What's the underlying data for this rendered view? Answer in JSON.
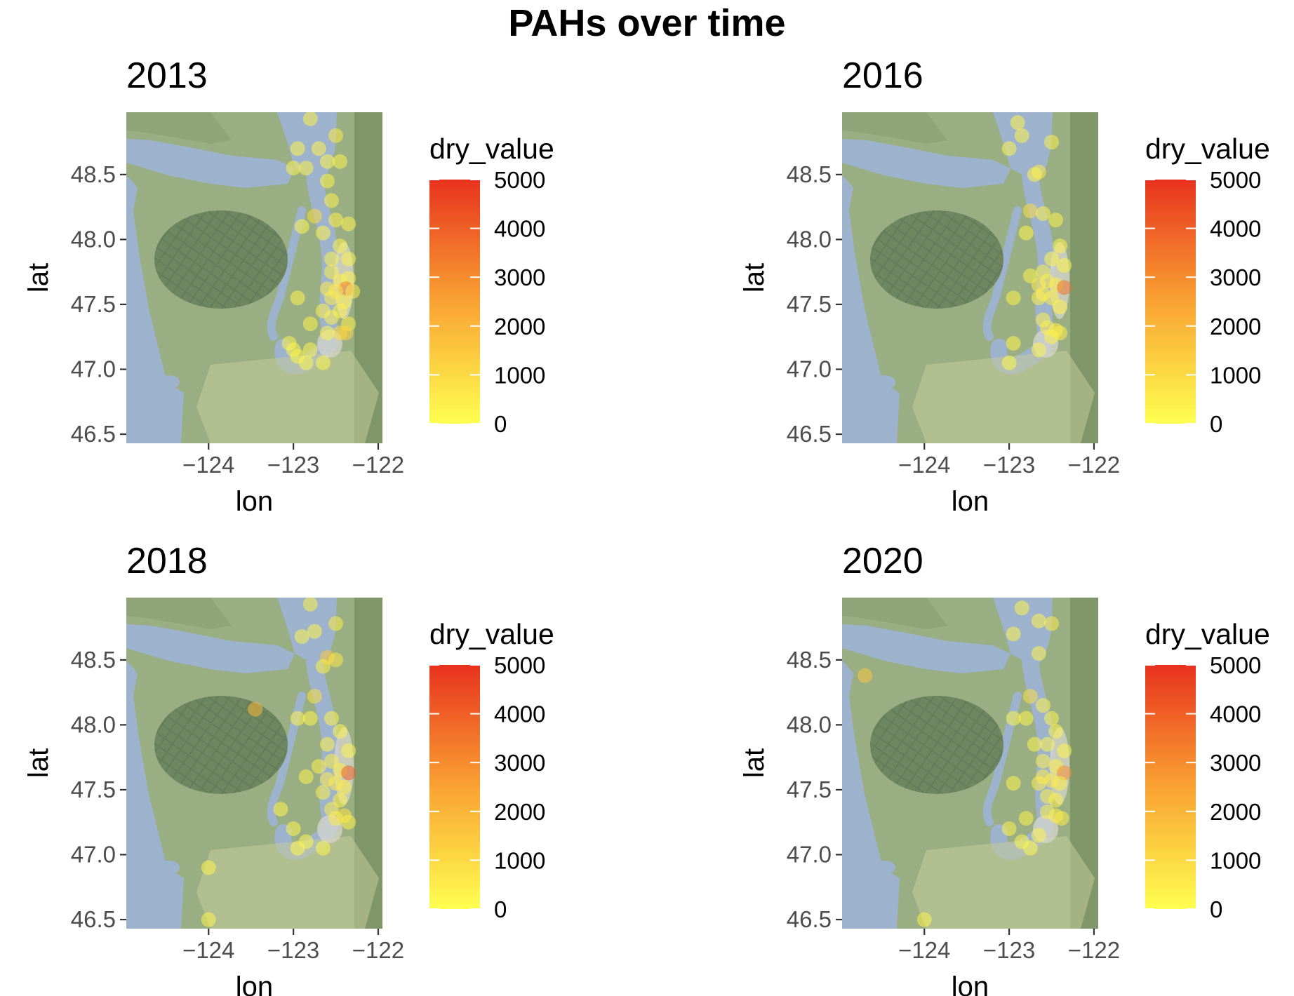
{
  "figure": {
    "title": "PAHs over time"
  },
  "colors": {
    "water": "#9db2cc",
    "land": "#9aae84",
    "mountain": "#6f8761",
    "lowland": "#c5cc9a",
    "urban": "#d6d6cc",
    "scale_low": "#ffff50",
    "scale_mid": "#f9a232",
    "scale_high": "#e8321e"
  },
  "chart_data": [
    {
      "type": "scatter",
      "title": "2013",
      "xlabel": "lon",
      "ylabel": "lat",
      "xlim": [
        -124.97,
        -121.95
      ],
      "ylim": [
        46.43,
        48.98
      ],
      "xticks": [
        -124,
        -123,
        -122
      ],
      "xtick_labels": [
        "−124",
        "−123",
        "−122"
      ],
      "yticks": [
        46.5,
        47.0,
        47.5,
        48.0,
        48.5
      ],
      "ytick_labels": [
        "46.5",
        "47.0",
        "47.5",
        "48.0",
        "48.5"
      ],
      "legend": {
        "title": "dry_value",
        "range": [
          0,
          5000
        ],
        "breaks": [
          0,
          1000,
          2000,
          3000,
          4000,
          5000
        ],
        "position": "right"
      },
      "points": [
        [
          -122.8,
          48.93,
          400
        ],
        [
          -122.5,
          48.8,
          600
        ],
        [
          -122.7,
          48.7,
          300
        ],
        [
          -122.95,
          48.7,
          250
        ],
        [
          -123.0,
          48.55,
          350
        ],
        [
          -122.85,
          48.55,
          400
        ],
        [
          -122.6,
          48.6,
          300
        ],
        [
          -122.45,
          48.6,
          300
        ],
        [
          -122.6,
          48.45,
          300
        ],
        [
          -122.55,
          48.3,
          350
        ],
        [
          -122.75,
          48.18,
          1000
        ],
        [
          -122.5,
          48.15,
          400
        ],
        [
          -122.35,
          48.12,
          350
        ],
        [
          -122.65,
          48.05,
          300
        ],
        [
          -122.9,
          48.1,
          250
        ],
        [
          -122.45,
          47.95,
          350
        ],
        [
          -122.55,
          47.85,
          300
        ],
        [
          -122.35,
          47.85,
          350
        ],
        [
          -122.55,
          47.75,
          400
        ],
        [
          -122.45,
          47.68,
          500
        ],
        [
          -122.35,
          47.7,
          400
        ],
        [
          -122.6,
          47.62,
          500
        ],
        [
          -122.38,
          47.62,
          3400
        ],
        [
          -122.5,
          47.6,
          600
        ],
        [
          -122.3,
          47.6,
          450
        ],
        [
          -122.55,
          47.55,
          500
        ],
        [
          -122.4,
          47.52,
          450
        ],
        [
          -122.95,
          47.55,
          250
        ],
        [
          -122.65,
          47.45,
          350
        ],
        [
          -122.45,
          47.45,
          400
        ],
        [
          -122.8,
          47.35,
          300
        ],
        [
          -122.55,
          47.4,
          350
        ],
        [
          -122.35,
          47.35,
          400
        ],
        [
          -122.45,
          47.28,
          1000
        ],
        [
          -122.38,
          47.28,
          1200
        ],
        [
          -122.6,
          47.28,
          300
        ],
        [
          -123.05,
          47.2,
          300
        ],
        [
          -122.8,
          47.15,
          250
        ],
        [
          -122.95,
          47.1,
          300
        ],
        [
          -122.65,
          47.05,
          300
        ],
        [
          -122.85,
          47.05,
          250
        ],
        [
          -123.0,
          47.15,
          250
        ]
      ]
    },
    {
      "type": "scatter",
      "title": "2016",
      "xlabel": "lon",
      "ylabel": "lat",
      "xlim": [
        -124.97,
        -121.95
      ],
      "ylim": [
        46.43,
        48.98
      ],
      "xticks": [
        -124,
        -123,
        -122
      ],
      "xtick_labels": [
        "−124",
        "−123",
        "−122"
      ],
      "yticks": [
        46.5,
        47.0,
        47.5,
        48.0,
        48.5
      ],
      "ytick_labels": [
        "46.5",
        "47.0",
        "47.5",
        "48.0",
        "48.5"
      ],
      "legend": {
        "title": "dry_value",
        "range": [
          0,
          5000
        ],
        "breaks": [
          0,
          1000,
          2000,
          3000,
          4000,
          5000
        ],
        "position": "right"
      },
      "points": [
        [
          -122.9,
          48.9,
          300
        ],
        [
          -122.85,
          48.8,
          300
        ],
        [
          -122.5,
          48.75,
          400
        ],
        [
          -123.0,
          48.7,
          300
        ],
        [
          -122.65,
          48.52,
          600
        ],
        [
          -122.7,
          48.5,
          300
        ],
        [
          -122.75,
          48.22,
          900
        ],
        [
          -122.6,
          48.2,
          300
        ],
        [
          -122.45,
          48.15,
          300
        ],
        [
          -122.8,
          48.05,
          250
        ],
        [
          -122.4,
          47.95,
          300
        ],
        [
          -122.5,
          47.85,
          300
        ],
        [
          -122.35,
          47.8,
          300
        ],
        [
          -122.6,
          47.75,
          400
        ],
        [
          -122.75,
          47.72,
          300
        ],
        [
          -122.55,
          47.68,
          500
        ],
        [
          -122.65,
          47.65,
          500
        ],
        [
          -122.45,
          47.65,
          500
        ],
        [
          -122.35,
          47.63,
          3600
        ],
        [
          -122.6,
          47.58,
          500
        ],
        [
          -122.5,
          47.55,
          500
        ],
        [
          -122.65,
          47.55,
          400
        ],
        [
          -122.95,
          47.55,
          300
        ],
        [
          -122.4,
          47.48,
          400
        ],
        [
          -122.6,
          47.38,
          350
        ],
        [
          -122.55,
          47.32,
          400
        ],
        [
          -122.45,
          47.3,
          500
        ],
        [
          -122.4,
          47.28,
          500
        ],
        [
          -122.5,
          47.25,
          400
        ],
        [
          -122.95,
          47.2,
          250
        ],
        [
          -122.65,
          47.15,
          300
        ],
        [
          -123.0,
          47.05,
          250
        ]
      ]
    },
    {
      "type": "scatter",
      "title": "2018",
      "xlabel": "lon",
      "ylabel": "lat",
      "xlim": [
        -124.97,
        -121.95
      ],
      "ylim": [
        46.43,
        48.98
      ],
      "xticks": [
        -124,
        -123,
        -122
      ],
      "xtick_labels": [
        "−124",
        "−123",
        "−122"
      ],
      "yticks": [
        46.5,
        47.0,
        47.5,
        48.0,
        48.5
      ],
      "ytick_labels": [
        "46.5",
        "47.0",
        "47.5",
        "48.0",
        "48.5"
      ],
      "legend": {
        "title": "dry_value",
        "range": [
          0,
          5000
        ],
        "breaks": [
          0,
          1000,
          2000,
          3000,
          4000,
          5000
        ],
        "position": "right"
      },
      "points": [
        [
          -122.8,
          48.93,
          400
        ],
        [
          -122.5,
          48.78,
          500
        ],
        [
          -122.75,
          48.72,
          300
        ],
        [
          -122.9,
          48.68,
          300
        ],
        [
          -122.6,
          48.52,
          1500
        ],
        [
          -122.5,
          48.5,
          600
        ],
        [
          -122.65,
          48.45,
          400
        ],
        [
          -122.75,
          48.22,
          800
        ],
        [
          -123.45,
          48.12,
          2000
        ],
        [
          -122.95,
          48.05,
          300
        ],
        [
          -122.8,
          48.05,
          250
        ],
        [
          -122.55,
          48.05,
          300
        ],
        [
          -122.45,
          47.95,
          300
        ],
        [
          -122.6,
          47.85,
          300
        ],
        [
          -122.35,
          47.8,
          350
        ],
        [
          -122.55,
          47.72,
          500
        ],
        [
          -122.7,
          47.68,
          400
        ],
        [
          -122.45,
          47.65,
          500
        ],
        [
          -122.35,
          47.63,
          4000
        ],
        [
          -122.6,
          47.58,
          500
        ],
        [
          -122.5,
          47.55,
          600
        ],
        [
          -122.4,
          47.52,
          600
        ],
        [
          -122.85,
          47.6,
          300
        ],
        [
          -122.65,
          47.48,
          400
        ],
        [
          -122.45,
          47.42,
          400
        ],
        [
          -122.55,
          47.35,
          500
        ],
        [
          -122.4,
          47.3,
          800
        ],
        [
          -122.5,
          47.28,
          500
        ],
        [
          -122.35,
          47.25,
          400
        ],
        [
          -123.15,
          47.35,
          250
        ],
        [
          -123.0,
          47.2,
          250
        ],
        [
          -122.85,
          47.1,
          250
        ],
        [
          -122.65,
          47.05,
          250
        ],
        [
          -122.95,
          47.05,
          250
        ],
        [
          -124.0,
          46.9,
          300
        ],
        [
          -124.0,
          46.5,
          300
        ]
      ]
    },
    {
      "type": "scatter",
      "title": "2020",
      "xlabel": "lon",
      "ylabel": "lat",
      "xlim": [
        -124.97,
        -121.95
      ],
      "ylim": [
        46.43,
        48.98
      ],
      "xticks": [
        -124,
        -123,
        -122
      ],
      "xtick_labels": [
        "−124",
        "−123",
        "−122"
      ],
      "yticks": [
        46.5,
        47.0,
        47.5,
        48.0,
        48.5
      ],
      "ytick_labels": [
        "46.5",
        "47.0",
        "47.5",
        "48.0",
        "48.5"
      ],
      "legend": {
        "title": "dry_value",
        "range": [
          0,
          5000
        ],
        "breaks": [
          0,
          1000,
          2000,
          3000,
          4000,
          5000
        ],
        "position": "right"
      },
      "points": [
        [
          -122.85,
          48.9,
          300
        ],
        [
          -122.5,
          48.78,
          500
        ],
        [
          -122.65,
          48.8,
          300
        ],
        [
          -122.95,
          48.7,
          300
        ],
        [
          -124.7,
          48.38,
          1500
        ],
        [
          -122.65,
          48.55,
          300
        ],
        [
          -122.75,
          48.22,
          900
        ],
        [
          -122.6,
          48.15,
          300
        ],
        [
          -122.95,
          48.05,
          250
        ],
        [
          -122.8,
          48.05,
          250
        ],
        [
          -122.5,
          48.05,
          300
        ],
        [
          -122.45,
          47.95,
          300
        ],
        [
          -122.55,
          47.85,
          300
        ],
        [
          -122.7,
          47.85,
          300
        ],
        [
          -122.35,
          47.8,
          300
        ],
        [
          -122.6,
          47.72,
          400
        ],
        [
          -122.45,
          47.68,
          500
        ],
        [
          -122.35,
          47.63,
          3000
        ],
        [
          -122.6,
          47.6,
          600
        ],
        [
          -122.5,
          47.57,
          600
        ],
        [
          -122.4,
          47.55,
          500
        ],
        [
          -122.65,
          47.55,
          500
        ],
        [
          -122.95,
          47.55,
          300
        ],
        [
          -122.55,
          47.45,
          400
        ],
        [
          -122.45,
          47.42,
          400
        ],
        [
          -122.55,
          47.33,
          400
        ],
        [
          -122.45,
          47.3,
          500
        ],
        [
          -122.38,
          47.28,
          500
        ],
        [
          -122.8,
          47.28,
          300
        ],
        [
          -123.0,
          47.2,
          300
        ],
        [
          -122.65,
          47.15,
          300
        ],
        [
          -122.85,
          47.1,
          250
        ],
        [
          -122.75,
          47.05,
          250
        ],
        [
          -124.0,
          46.5,
          300
        ]
      ]
    }
  ]
}
